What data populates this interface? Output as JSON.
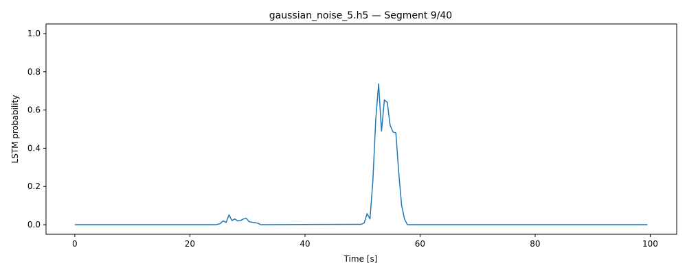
{
  "chart_data": {
    "type": "line",
    "title": "gaussian_noise_5.h5 — Segment 9/40",
    "xlabel": "Time [s]",
    "ylabel": "LSTM probability",
    "xlim": [
      -5,
      104.6
    ],
    "ylim": [
      -0.05,
      1.05
    ],
    "xticks": [
      0,
      20,
      40,
      60,
      80,
      100
    ],
    "yticks": [
      0.0,
      0.2,
      0.4,
      0.6,
      0.8,
      1.0
    ],
    "grid": false,
    "series": [
      {
        "color": "#1f77b4",
        "x": [
          0,
          24.5,
          25.2,
          25.8,
          26.3,
          26.8,
          27.3,
          27.8,
          28.3,
          28.8,
          29.3,
          29.8,
          30.3,
          31.0,
          31.8,
          32.3,
          49.8,
          50.3,
          50.8,
          51.3,
          51.8,
          52.3,
          52.8,
          53.3,
          53.8,
          54.3,
          54.8,
          55.3,
          55.8,
          56.3,
          56.8,
          57.3,
          57.8,
          99.5
        ],
        "y": [
          0.0,
          0.0,
          0.005,
          0.02,
          0.012,
          0.052,
          0.022,
          0.03,
          0.02,
          0.022,
          0.03,
          0.034,
          0.016,
          0.012,
          0.008,
          0.0,
          0.002,
          0.01,
          0.058,
          0.03,
          0.23,
          0.55,
          0.737,
          0.49,
          0.653,
          0.64,
          0.52,
          0.485,
          0.48,
          0.27,
          0.1,
          0.03,
          0.0,
          0.0
        ]
      }
    ]
  }
}
